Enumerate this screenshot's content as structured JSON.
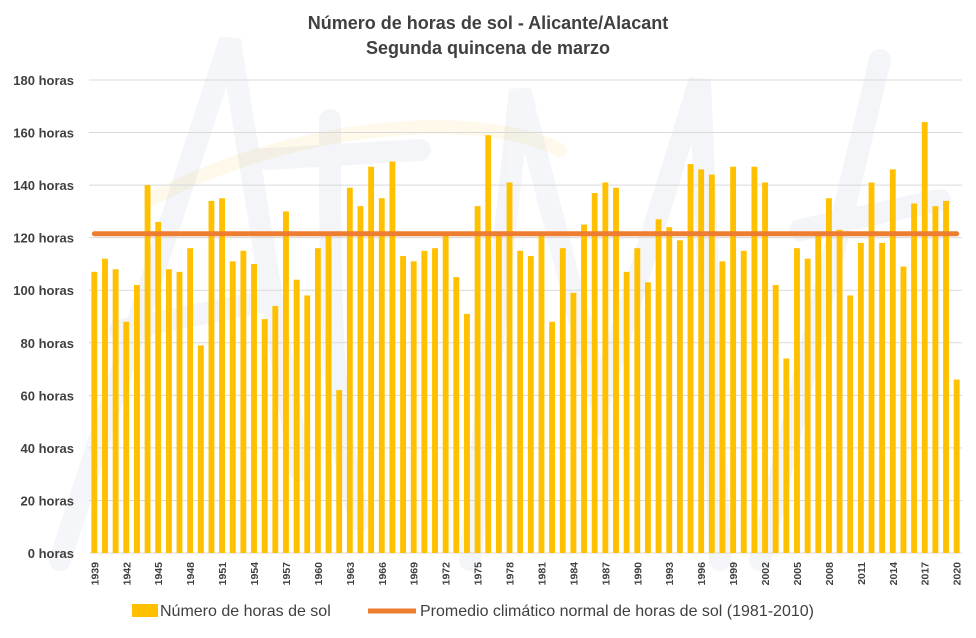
{
  "chart_data": {
    "type": "bar",
    "title": "Número de horas de sol - Alicante/Alacant",
    "subtitle": "Segunda quincena de marzo",
    "x_start_year": 1939,
    "x": [
      1939,
      1940,
      1941,
      1942,
      1943,
      1944,
      1945,
      1946,
      1947,
      1948,
      1949,
      1950,
      1951,
      1952,
      1953,
      1954,
      1955,
      1956,
      1957,
      1958,
      1959,
      1960,
      1961,
      1962,
      1963,
      1964,
      1965,
      1966,
      1967,
      1968,
      1969,
      1970,
      1971,
      1972,
      1973,
      1974,
      1975,
      1976,
      1977,
      1978,
      1979,
      1980,
      1981,
      1982,
      1983,
      1984,
      1985,
      1986,
      1987,
      1988,
      1989,
      1990,
      1991,
      1992,
      1993,
      1994,
      1995,
      1996,
      1997,
      1998,
      1999,
      2000,
      2001,
      2002,
      2003,
      2004,
      2005,
      2006,
      2007,
      2008,
      2009,
      2010,
      2011,
      2012,
      2013,
      2014,
      2015,
      2016,
      2017,
      2018,
      2019,
      2020
    ],
    "x_tick_labels": [
      "1939",
      "1942",
      "1945",
      "1948",
      "1951",
      "1954",
      "1957",
      "1960",
      "1963",
      "1966",
      "1969",
      "1972",
      "1975",
      "1978",
      "1981",
      "1984",
      "1987",
      "1990",
      "1993",
      "1996",
      "1999",
      "2002",
      "2005",
      "2008",
      "2011",
      "2014",
      "2017",
      "2020"
    ],
    "series": [
      {
        "name": "Número de horas de sol",
        "type": "bar",
        "color": "#FFC000",
        "values": [
          107,
          112,
          108,
          88,
          102,
          140,
          126,
          108,
          107,
          116,
          79,
          134,
          135,
          111,
          115,
          110,
          89,
          94,
          130,
          104,
          98,
          116,
          121,
          62,
          139,
          132,
          147,
          135,
          149,
          113,
          111,
          115,
          116,
          121,
          105,
          91,
          132,
          159,
          121,
          141,
          115,
          113,
          121,
          88,
          116,
          99,
          125,
          137,
          141,
          139,
          107,
          116,
          103,
          127,
          124,
          119,
          148,
          146,
          144,
          111,
          147,
          115,
          147,
          141,
          102,
          74,
          116,
          112,
          121,
          135,
          123,
          98,
          118,
          141,
          118,
          146,
          109,
          133,
          164,
          132,
          134,
          66
        ]
      },
      {
        "name": "Promedio climático normal de horas de sol (1981-2010)",
        "type": "line",
        "color": "#ED7D31",
        "value": 121.5
      }
    ],
    "y_tick_labels": [
      "0 horas",
      "20 horas",
      "40 horas",
      "60 horas",
      "80 horas",
      "100 horas",
      "120 horas",
      "140 horas",
      "160 horas",
      "180 horas"
    ],
    "ylim": [
      0,
      180
    ],
    "y_tick_step": 20,
    "grid": true,
    "legend_position": "bottom"
  }
}
